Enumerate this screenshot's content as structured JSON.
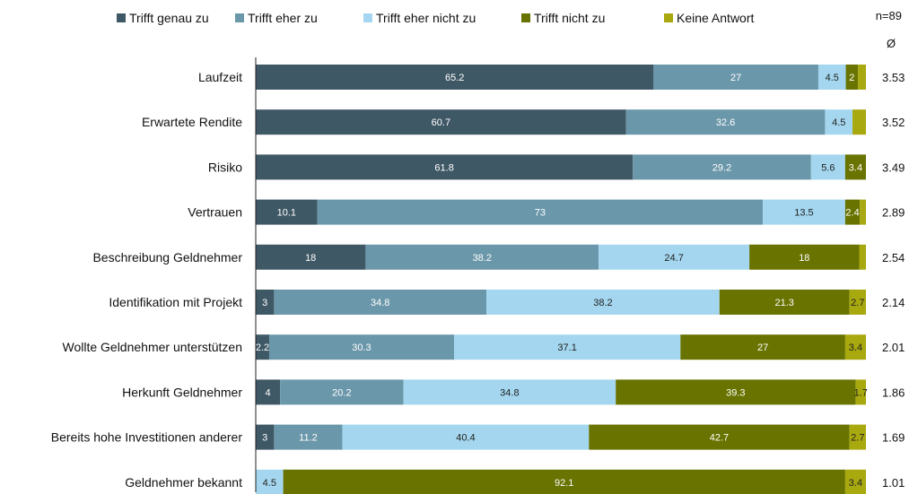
{
  "chart_data": {
    "type": "bar",
    "orientation": "horizontal",
    "stacked": true,
    "sample_label": "n=89",
    "avg_symbol": "Ø",
    "xlim": [
      0,
      100
    ],
    "categories": [
      "Laufzeit",
      "Erwartete Rendite",
      "Risiko",
      "Vertrauen",
      "Beschreibung Geldnehmer",
      "Identifikation mit Projekt",
      "Wollte Geldnehmer unterstützen",
      "Herkunft Geldnehmer",
      "Bereits hohe Investitionen anderer",
      "Geldnehmer bekannt"
    ],
    "averages": [
      "3.53",
      "3.52",
      "3.49",
      "2.89",
      "2.54",
      "2.14",
      "2.01",
      "1.86",
      "1.69",
      "1.01"
    ],
    "series": [
      {
        "name": "Trifft genau zu",
        "color": "#3f5866",
        "label_color": "#ffffff",
        "values": [
          65.2,
          60.7,
          61.8,
          10.1,
          18,
          3,
          2.2,
          4,
          3,
          0
        ]
      },
      {
        "name": "Trifft eher zu",
        "color": "#6b97aa",
        "label_color": "#ffffff",
        "values": [
          27,
          32.6,
          29.2,
          73,
          38.2,
          34.8,
          30.3,
          20.2,
          11.2,
          0
        ]
      },
      {
        "name": "Trifft eher nicht zu",
        "color": "#a4d7ef",
        "label_color": "#222222",
        "values": [
          4.5,
          4.5,
          5.6,
          13.5,
          24.7,
          38.2,
          37.1,
          34.8,
          40.4,
          4.5
        ]
      },
      {
        "name": "Trifft nicht zu",
        "color": "#687300",
        "label_color": "#ffffff",
        "values": [
          2,
          0,
          3.4,
          2.4,
          18,
          21.3,
          27,
          39.3,
          42.7,
          92.1
        ]
      },
      {
        "name": "Keine Antwort",
        "color": "#a8a80f",
        "label_color": "#222222",
        "values": [
          1.3,
          2.2,
          0,
          1,
          1.1,
          2.7,
          3.4,
          1.7,
          2.7,
          3.4
        ]
      }
    ],
    "value_labels": [
      [
        "65.2",
        "27",
        "4.5",
        "2",
        ""
      ],
      [
        "60.7",
        "32.6",
        "4.5",
        "",
        ""
      ],
      [
        "61.8",
        "29.2",
        "5.6",
        "3.4",
        ""
      ],
      [
        "10.1",
        "73",
        "13.5",
        "2.4",
        ""
      ],
      [
        "18",
        "38.2",
        "24.7",
        "18",
        ""
      ],
      [
        "3",
        "34.8",
        "38.2",
        "21.3",
        "2.7"
      ],
      [
        "2.2",
        "30.3",
        "37.1",
        "27",
        "3.4"
      ],
      [
        "4",
        "20.2",
        "34.8",
        "39.3",
        "1.7"
      ],
      [
        "3",
        "11.2",
        "40.4",
        "42.7",
        "2.7"
      ],
      [
        "",
        "",
        "4.5",
        "92.1",
        "3.4"
      ]
    ],
    "legend_position": "top"
  }
}
